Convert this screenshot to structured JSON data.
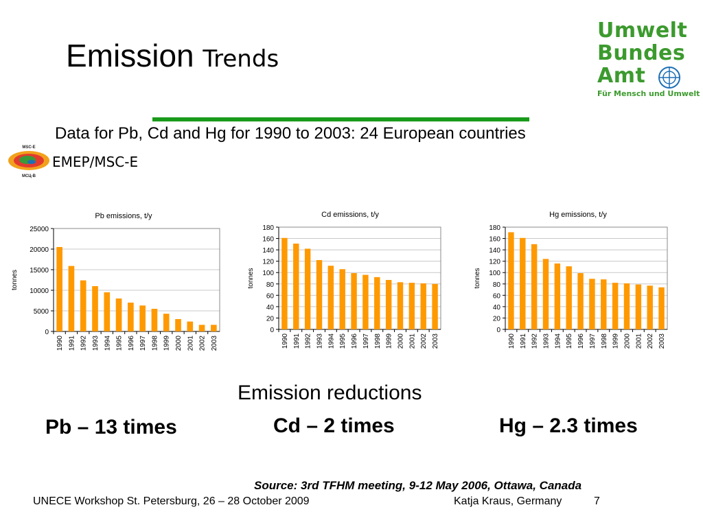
{
  "slide": {
    "title_part1": "Emission",
    "title_part2": "Trends",
    "subtitle": "Data for Pb, Cd and Hg for 1990 to 2003: 24 European countries",
    "emep_label": "EMEP/MSC-E",
    "msce_logo_text_top": "MSC-E",
    "msce_logo_text_bottom": "МСЦ-В",
    "uba_logo": {
      "line1": "Umwelt",
      "line2": "Bundes",
      "line3": "Amt",
      "tagline": "Für Mensch und Umwelt",
      "color": "#3c9a2e"
    },
    "reductions_heading": "Emission reductions",
    "reductions": {
      "pb": "Pb – 13 times",
      "cd": "Cd – 2 times",
      "hg": "Hg – 2.3 times"
    },
    "source": "Source: 3rd TFHM meeting, 9-12 May 2006, Ottawa, Canada",
    "footer_left": "UNECE Workshop St. Petersburg, 26 – 28 October 2009",
    "footer_right": "Katja Kraus, Germany",
    "page_number": "7"
  },
  "chart_data": [
    {
      "type": "bar",
      "title": "Pb emissions, t/y",
      "ylabel": "tonnes",
      "xlabel": "",
      "ylim": [
        0,
        25000
      ],
      "yticks": [
        0,
        5000,
        10000,
        15000,
        20000,
        25000
      ],
      "grid": true,
      "bar_color": "#ff9900",
      "categories": [
        "1990",
        "1991",
        "1992",
        "1993",
        "1994",
        "1995",
        "1996",
        "1997",
        "1998",
        "1999",
        "2000",
        "2001",
        "2002",
        "2003"
      ],
      "values": [
        20500,
        15900,
        12400,
        11000,
        9500,
        8000,
        7000,
        6300,
        5500,
        4300,
        3000,
        2400,
        1600,
        1600
      ]
    },
    {
      "type": "bar",
      "title": "Cd emissions, t/y",
      "ylabel": "tonnes",
      "xlabel": "",
      "ylim": [
        0,
        180
      ],
      "yticks": [
        0,
        20,
        40,
        60,
        80,
        100,
        120,
        140,
        160,
        180
      ],
      "grid": true,
      "bar_color": "#ff9900",
      "categories": [
        "1990",
        "1991",
        "1992",
        "1993",
        "1994",
        "1995",
        "1996",
        "1997",
        "1998",
        "1999",
        "2000",
        "2001",
        "2002",
        "2003"
      ],
      "values": [
        161,
        151,
        142,
        122,
        112,
        106,
        99,
        96,
        92,
        87,
        83,
        82,
        81,
        80
      ]
    },
    {
      "type": "bar",
      "title": "Hg emissions, t/y",
      "ylabel": "tonnes",
      "xlabel": "",
      "ylim": [
        0,
        180
      ],
      "yticks": [
        0,
        20,
        40,
        60,
        80,
        100,
        120,
        140,
        160,
        180
      ],
      "grid": true,
      "bar_color": "#ff9900",
      "categories": [
        "1990",
        "1991",
        "1992",
        "1993",
        "1994",
        "1995",
        "1996",
        "1997",
        "1998",
        "1999",
        "2000",
        "2001",
        "2002",
        "2003"
      ],
      "values": [
        171,
        161,
        150,
        124,
        116,
        111,
        99,
        89,
        88,
        82,
        81,
        79,
        77,
        74
      ]
    }
  ]
}
